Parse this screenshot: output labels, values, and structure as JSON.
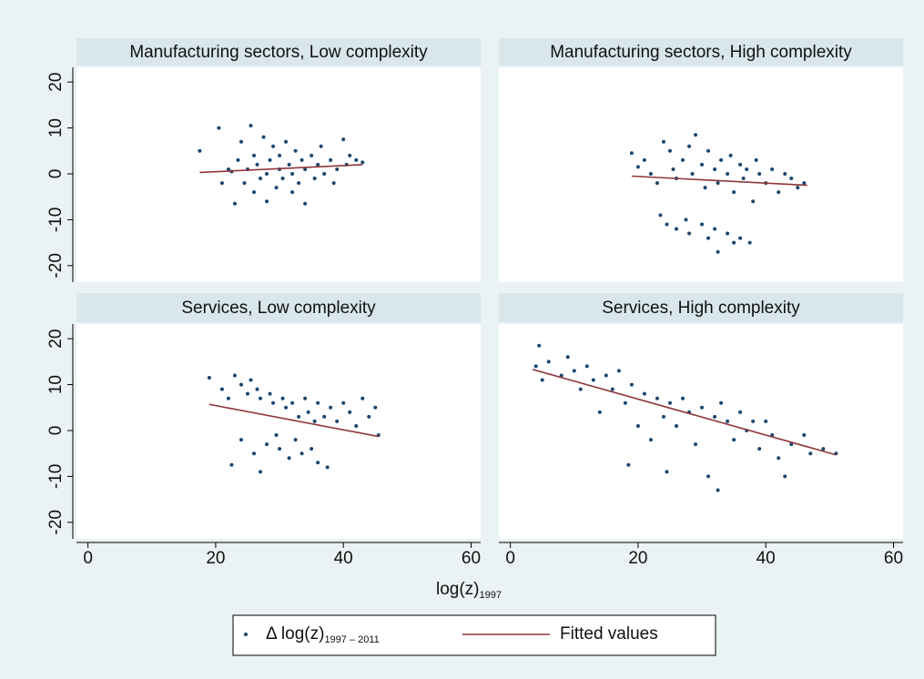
{
  "chart_data": [
    {
      "type": "scatter",
      "title": "Manufacturing sectors, Low complexity",
      "xlim": [
        -1.8,
        61.5
      ],
      "ylim": [
        -23.6,
        23.2
      ],
      "yticks": [
        -20,
        -10,
        0,
        10,
        20
      ],
      "series": [
        {
          "name": "Δ log(z)",
          "name_subscript": "1997 – 2011",
          "color": "#1a476f",
          "type": "scatter",
          "x": [
            17.5,
            20.5,
            21,
            22,
            22.5,
            23,
            23.5,
            24,
            24.5,
            25,
            25.5,
            26,
            26,
            26.5,
            27,
            27.5,
            28,
            28,
            28.5,
            29,
            29.5,
            30,
            30,
            30.5,
            31,
            31.5,
            32,
            32,
            32.5,
            33,
            33.5,
            34,
            34,
            35,
            35.5,
            36,
            36.5,
            37,
            38,
            38.5,
            39,
            40,
            40.5,
            41,
            42,
            43
          ],
          "values": [
            5,
            10,
            -2,
            1,
            0.5,
            -6.5,
            3,
            7,
            -2,
            1,
            10.5,
            -4,
            4,
            2,
            -1,
            8,
            0,
            -6,
            3,
            6,
            -3,
            1,
            4,
            -1,
            7,
            2,
            -4,
            0,
            5,
            -2,
            3,
            1,
            -6.5,
            4,
            -1,
            2,
            6,
            0,
            3,
            -2,
            1,
            7.5,
            2,
            4,
            3,
            2.5
          ]
        },
        {
          "name": "Fitted values",
          "color": "#90353b",
          "type": "line",
          "x": [
            17.5,
            43
          ],
          "values": [
            0.3,
            2
          ]
        }
      ]
    },
    {
      "type": "scatter",
      "title": "Manufacturing sectors, High complexity",
      "xlim": [
        -1.8,
        61.5
      ],
      "ylim": [
        -23.6,
        23.2
      ],
      "series": [
        {
          "color": "#1a476f",
          "type": "scatter",
          "x": [
            19,
            20,
            21,
            22,
            23,
            24,
            25,
            25.5,
            26,
            27,
            28,
            28.5,
            29,
            30,
            30.5,
            31,
            32,
            32.5,
            33,
            34,
            34.5,
            35,
            36,
            36.5,
            37,
            38,
            38.5,
            39,
            40,
            41,
            42,
            43,
            44,
            45,
            46,
            23.5,
            24.5,
            26,
            27.5,
            28,
            30,
            31,
            32,
            32.5,
            34,
            35,
            36,
            37.5
          ],
          "values": [
            4.5,
            1.5,
            3,
            0,
            -2,
            7,
            5,
            1,
            -1,
            3,
            6,
            0,
            8.5,
            2,
            -3,
            5,
            1,
            -2,
            3,
            0,
            4,
            -4,
            2,
            -1,
            1,
            -6,
            3,
            0,
            -2,
            1,
            -4,
            0,
            -1,
            -3,
            -2,
            -9,
            -11,
            -12,
            -10,
            -13,
            -11,
            -14,
            -12,
            -17,
            -13,
            -15,
            -14,
            -15
          ]
        },
        {
          "color": "#90353b",
          "type": "line",
          "x": [
            19,
            46.5
          ],
          "values": [
            -0.5,
            -2.5
          ]
        }
      ]
    },
    {
      "type": "scatter",
      "title": "Services, Low complexity",
      "xlim": [
        -1.8,
        61.5
      ],
      "ylim": [
        -23.6,
        23.2
      ],
      "yticks": [
        -20,
        -10,
        0,
        10,
        20
      ],
      "xticks": [
        0,
        20,
        40,
        60
      ],
      "series": [
        {
          "color": "#1a476f",
          "type": "scatter",
          "x": [
            19,
            21,
            22,
            22.5,
            23,
            24,
            24,
            25,
            25.5,
            26,
            26.5,
            27,
            27,
            28,
            28.5,
            29,
            29.5,
            30,
            30.5,
            31,
            31.5,
            32,
            32.5,
            33,
            33.5,
            34,
            34.5,
            35,
            35.5,
            36,
            36,
            37,
            37.5,
            38,
            39,
            40,
            41,
            42,
            43,
            44,
            45,
            45.5
          ],
          "values": [
            11.5,
            9,
            7,
            -7.5,
            12,
            10,
            -2,
            8,
            11,
            -5,
            9,
            -9,
            7,
            -3,
            8,
            6,
            -1,
            -4,
            7,
            5,
            -6,
            6,
            -2,
            3,
            -5,
            7,
            4,
            -4,
            2,
            -7,
            6,
            3,
            -8,
            5,
            2,
            6,
            4,
            1,
            7,
            3,
            5,
            -1
          ]
        },
        {
          "color": "#90353b",
          "type": "line",
          "x": [
            19,
            45.5
          ],
          "values": [
            5.7,
            -1.3
          ]
        }
      ]
    },
    {
      "type": "scatter",
      "title": "Services, High complexity",
      "xlim": [
        -1.8,
        61.5
      ],
      "ylim": [
        -23.6,
        23.2
      ],
      "xticks": [
        0,
        20,
        40,
        60
      ],
      "series": [
        {
          "color": "#1a476f",
          "type": "scatter",
          "x": [
            4,
            4.5,
            5,
            6,
            8,
            9,
            10,
            11,
            12,
            13,
            14,
            15,
            16,
            17,
            18,
            18.5,
            19,
            20,
            21,
            22,
            23,
            24,
            24.5,
            25,
            26,
            27,
            28,
            29,
            30,
            31,
            32,
            32.5,
            33,
            34,
            35,
            36,
            37,
            38,
            39,
            40,
            41,
            42,
            43,
            44,
            46,
            47,
            49,
            51
          ],
          "values": [
            14,
            18.5,
            11,
            15,
            12,
            16,
            13,
            9,
            14,
            11,
            4,
            12,
            9,
            13,
            6,
            -7.5,
            10,
            1,
            8,
            -2,
            7,
            3,
            -9,
            6,
            1,
            7,
            4,
            -3,
            5,
            -10,
            3,
            -13,
            6,
            2,
            -2,
            4,
            0,
            2,
            -4,
            2,
            -1,
            -6,
            -10,
            -3,
            -1,
            -5,
            -4,
            -5
          ]
        },
        {
          "color": "#90353b",
          "type": "line",
          "x": [
            3.5,
            51
          ],
          "values": [
            13.3,
            -5.3
          ]
        }
      ]
    }
  ],
  "x_label": "log(z)",
  "x_label_subscript": "1997"
}
